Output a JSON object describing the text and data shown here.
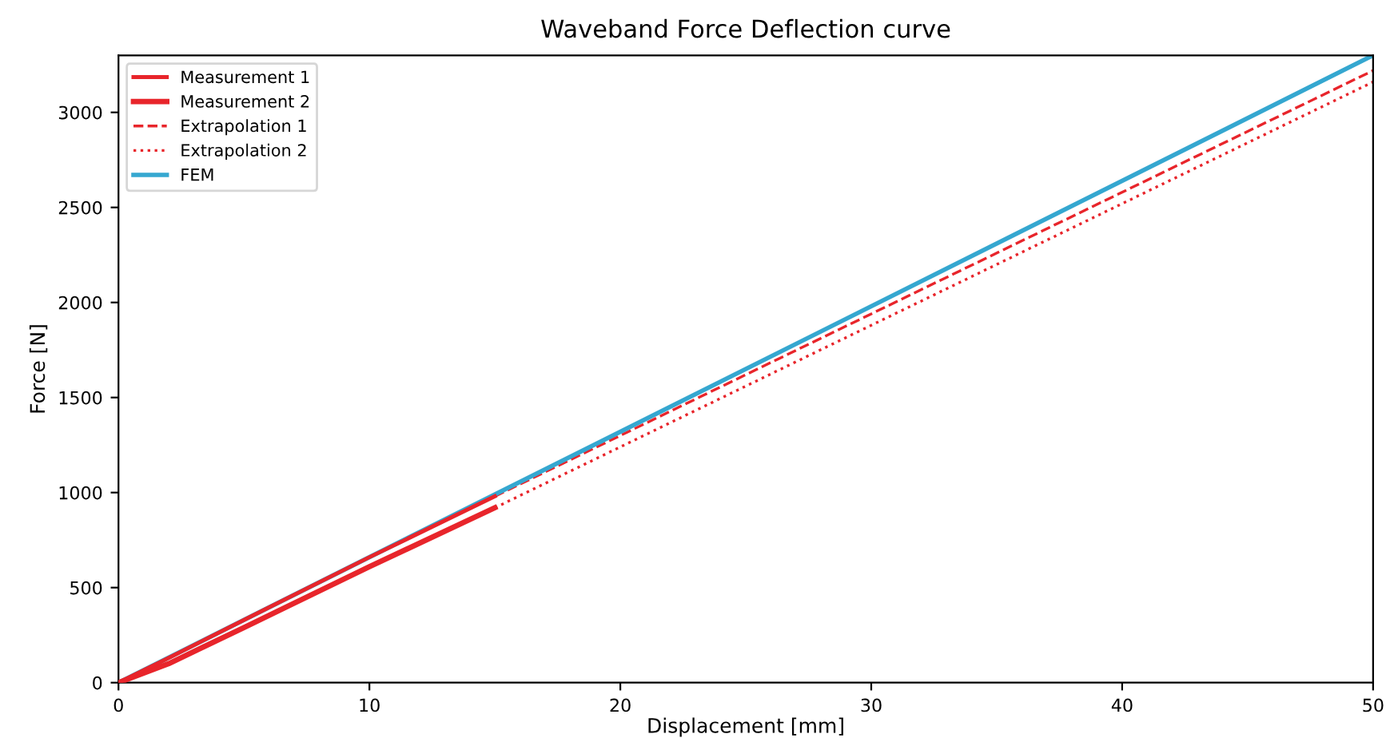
{
  "chart_data": {
    "type": "line",
    "title": "Waveband Force Deflection curve",
    "xlabel": "Displacement [mm]",
    "ylabel": "Force [N]",
    "xlim": [
      0,
      50
    ],
    "ylim": [
      0,
      3300
    ],
    "xticks": [
      0,
      10,
      20,
      30,
      40,
      50
    ],
    "yticks": [
      0,
      500,
      1000,
      1500,
      2000,
      2500,
      3000
    ],
    "grid": false,
    "legend": "top left",
    "series": [
      {
        "name": "Measurement 1",
        "color": "#e8252b",
        "line_style": "solid",
        "x": [
          0,
          2,
          5,
          10,
          15
        ],
        "values": [
          0,
          130,
          330,
          660,
          980
        ]
      },
      {
        "name": "Measurement 2",
        "color": "#e8252b",
        "line_style": "solid",
        "x": [
          0,
          2,
          5,
          10,
          15
        ],
        "values": [
          0,
          100,
          290,
          610,
          920
        ]
      },
      {
        "name": "Extrapolation 1",
        "color": "#e8252b",
        "line_style": "dashed",
        "x": [
          15,
          50
        ],
        "values": [
          980,
          3220
        ]
      },
      {
        "name": "Extrapolation 2",
        "color": "#e8252b",
        "line_style": "dotted",
        "x": [
          15,
          50
        ],
        "values": [
          920,
          3160
        ]
      },
      {
        "name": "FEM",
        "color": "#35a7d0",
        "line_style": "solid",
        "x": [
          0,
          50
        ],
        "values": [
          0,
          3300
        ]
      }
    ]
  }
}
